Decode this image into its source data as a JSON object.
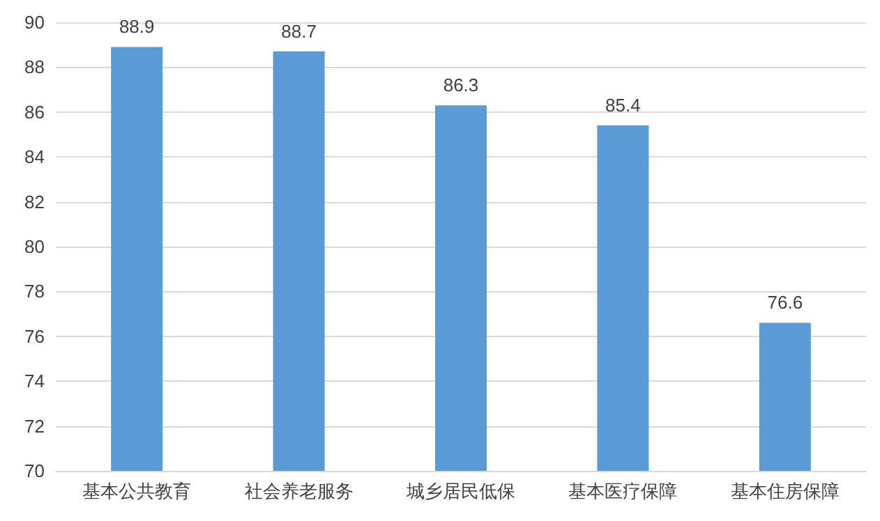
{
  "chart_data": {
    "type": "bar",
    "categories": [
      "基本公共教育",
      "社会养老服务",
      "城乡居民低保",
      "基本医疗保障",
      "基本住房保障"
    ],
    "values": [
      88.9,
      88.7,
      86.3,
      85.4,
      76.6
    ],
    "color": "#5b9bd5",
    "ylim": [
      70,
      90
    ],
    "yticks": [
      70,
      72,
      74,
      76,
      78,
      80,
      82,
      84,
      86,
      88,
      90
    ],
    "grid": "y",
    "data_labels": true
  }
}
